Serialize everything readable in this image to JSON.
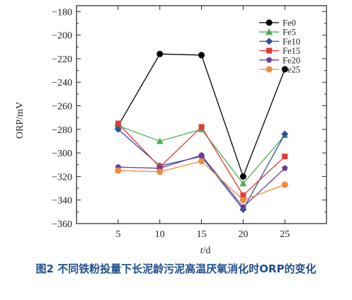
{
  "caption": "图2 不同铁粉投量下长泥龄污泥高温厌氧消化时ORP的变化",
  "chart_data": {
    "type": "line",
    "xlabel_italic": "t",
    "xlabel_unit": "/d",
    "ylabel": "ORP/mV",
    "x": [
      5,
      10,
      15,
      20,
      25
    ],
    "xlim": [
      0,
      30
    ],
    "ylim": [
      -360,
      -175
    ],
    "yticks": [
      -360,
      -340,
      -320,
      -300,
      -280,
      -260,
      -240,
      -220,
      -200,
      -180
    ],
    "grid": false,
    "legend_position": "top-right",
    "series": [
      {
        "name": "Fe0",
        "color": "#000000",
        "marker": "circle",
        "values": [
          -277,
          -216,
          -217,
          -320,
          -229
        ]
      },
      {
        "name": "Fe5",
        "color": "#4caf50",
        "marker": "triangle",
        "values": [
          -277,
          -290,
          -280,
          -326,
          -285
        ]
      },
      {
        "name": "Fe10",
        "color": "#2f4fa2",
        "marker": "diamond",
        "values": [
          -280,
          -311,
          -303,
          -348,
          -284
        ]
      },
      {
        "name": "Fe15",
        "color": "#e53935",
        "marker": "square",
        "values": [
          -275,
          -312,
          -278,
          -336,
          -303
        ]
      },
      {
        "name": "Fe20",
        "color": "#6a3d9a",
        "marker": "pentagon",
        "values": [
          -312,
          -313,
          -302,
          -346,
          -313
        ]
      },
      {
        "name": "Fe25",
        "color": "#f08a3c",
        "marker": "circle",
        "values": [
          -315,
          -316,
          -307,
          -340,
          -327
        ]
      }
    ]
  }
}
